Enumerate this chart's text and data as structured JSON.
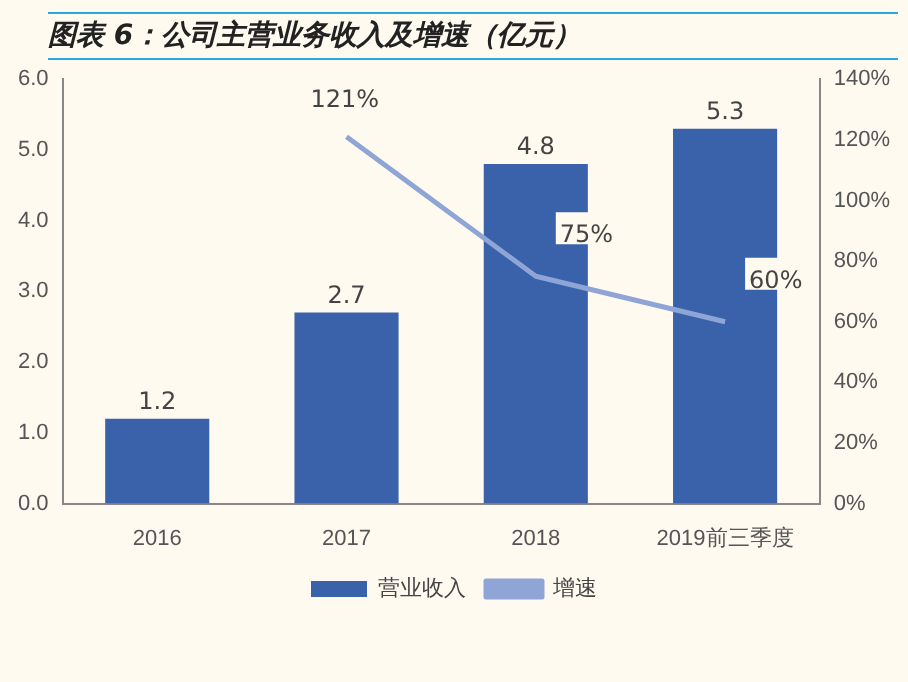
{
  "chart_data": {
    "type": "bar",
    "title": "图表 6：公司主营业务收入及增速（亿元）",
    "categories": [
      "2016",
      "2017",
      "2018",
      "2019前三季度"
    ],
    "series": [
      {
        "name": "营业收入",
        "color": "#3a62ab",
        "values": [
          1.2,
          2.7,
          4.8,
          5.3
        ],
        "value_labels": [
          "1.2",
          "2.7",
          "4.8",
          "5.3"
        ]
      },
      {
        "name": "增速",
        "type": "line",
        "axis": "y2",
        "color": "#8fa5d6",
        "values": [
          null,
          121,
          75,
          60
        ],
        "value_labels": [
          null,
          "121%",
          "75%",
          "60%"
        ]
      }
    ],
    "ylim": [
      0,
      6
    ],
    "yticks": [
      {
        "value": 0,
        "label": "0.0"
      },
      {
        "value": 1,
        "label": "1.0"
      },
      {
        "value": 2,
        "label": "2.0"
      },
      {
        "value": 3,
        "label": "3.0"
      },
      {
        "value": 4,
        "label": "4.0"
      },
      {
        "value": 5,
        "label": "5.0"
      },
      {
        "value": 6,
        "label": "6.0"
      }
    ],
    "y2lim": [
      0,
      140
    ],
    "y2ticks": [
      {
        "value": 0,
        "label": "0%"
      },
      {
        "value": 20,
        "label": "20%"
      },
      {
        "value": 40,
        "label": "40%"
      },
      {
        "value": 60,
        "label": "60%"
      },
      {
        "value": 80,
        "label": "80%"
      },
      {
        "value": 100,
        "label": "100%"
      },
      {
        "value": 120,
        "label": "120%"
      },
      {
        "value": 140,
        "label": "140%"
      }
    ],
    "legend": "bottom",
    "marker": "none",
    "grid": false
  }
}
